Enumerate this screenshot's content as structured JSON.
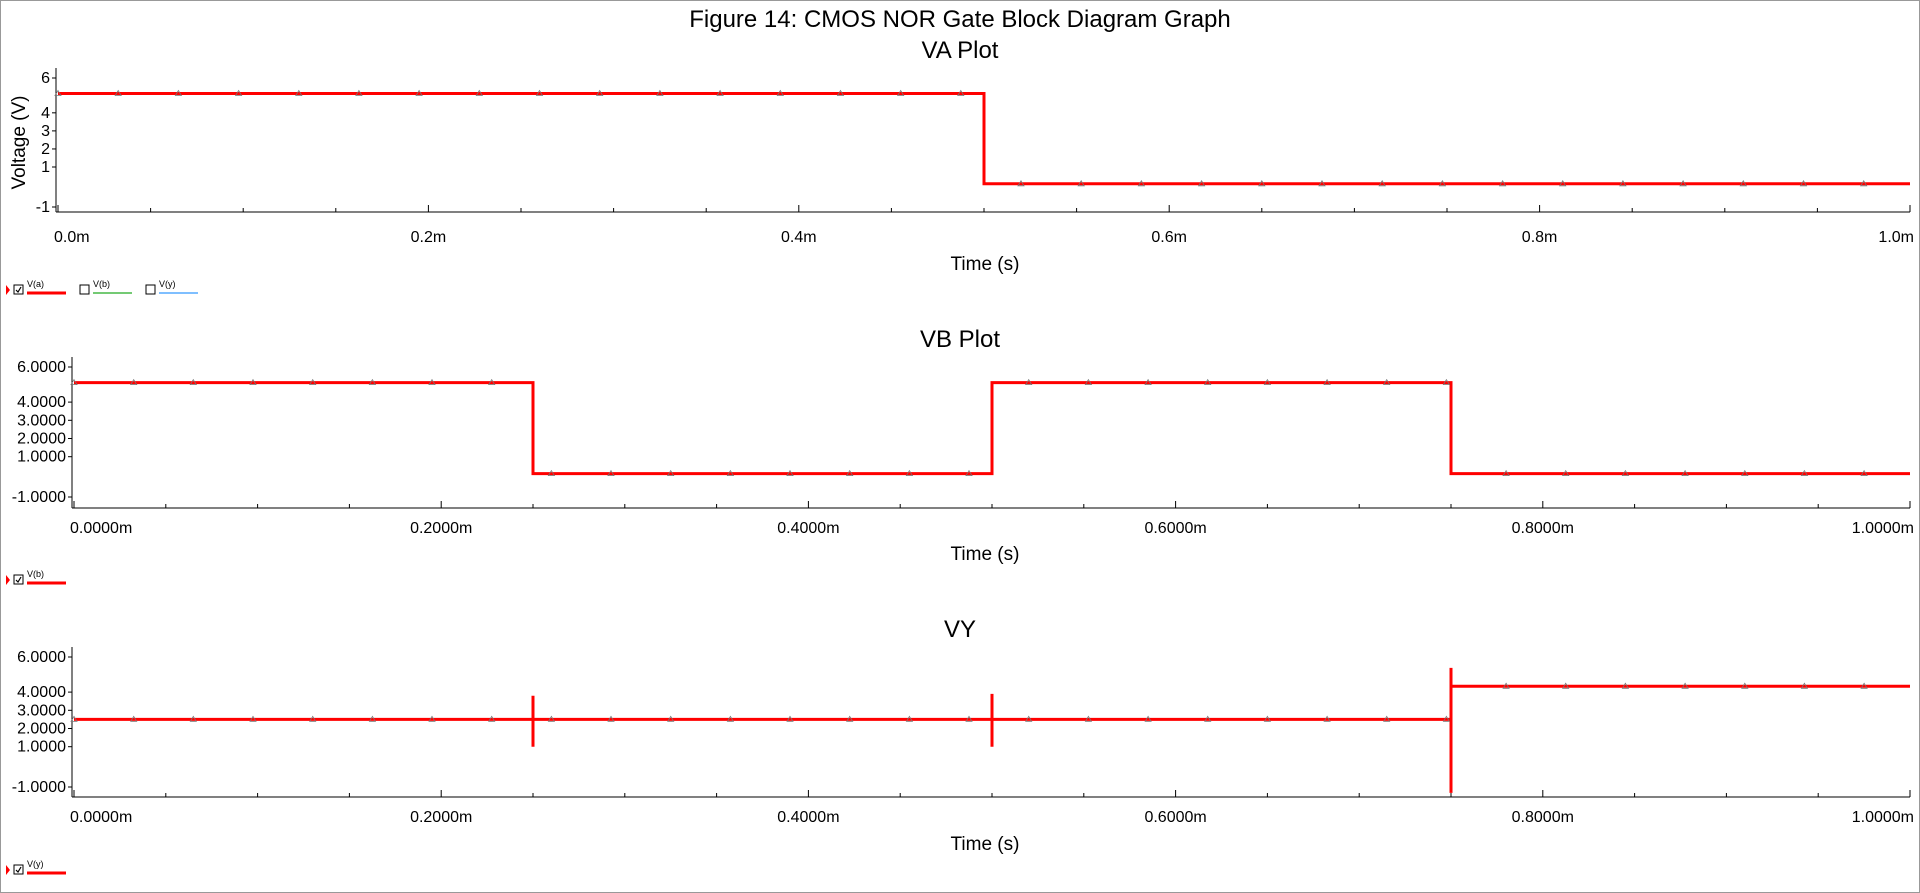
{
  "figure": {
    "title": "Figure 14: CMOS NOR Gate Block Diagram Graph"
  },
  "colors": {
    "trace": "#ff0000",
    "legend_b": "#22aa22",
    "legend_y": "#3399ff",
    "axis": "#000000",
    "frame": "#999999"
  },
  "chart_data": [
    {
      "type": "line",
      "title": "VA Plot",
      "xlabel": "Time (s)",
      "ylabel": "Voltage (V)",
      "xlim": [
        0,
        1
      ],
      "ylim": [
        -1.5,
        6.5
      ],
      "x_unit": "ms",
      "xticks": [
        0,
        0.2,
        0.4,
        0.6,
        0.8,
        1.0
      ],
      "xtick_labels": [
        "0.0m",
        "0.2m",
        "0.4m",
        "0.6m",
        "0.8m",
        "1.0m"
      ],
      "yticks": [
        6,
        4,
        3,
        2,
        1,
        -1
      ],
      "ytick_labels": [
        "6",
        "4",
        "3",
        "2",
        "1",
        "-1"
      ],
      "grid": false,
      "series": [
        {
          "name": "V(a)",
          "color": "#ff0000",
          "checked": true,
          "x": [
            0,
            0.5,
            0.5,
            1.0
          ],
          "y": [
            5,
            5,
            0,
            0
          ]
        }
      ],
      "legend": [
        {
          "label": "V(a)",
          "checked": true,
          "color": "#ff0000"
        },
        {
          "label": "V(b)",
          "checked": false,
          "color": "#22aa22"
        },
        {
          "label": "V(y)",
          "checked": false,
          "color": "#3399ff"
        }
      ]
    },
    {
      "type": "line",
      "title": "VB Plot",
      "xlabel": "Time (s)",
      "ylabel": "",
      "xlim": [
        0,
        1
      ],
      "ylim": [
        -1.5,
        6.5
      ],
      "x_unit": "ms",
      "xticks": [
        0,
        0.2,
        0.4,
        0.6,
        0.8,
        1.0
      ],
      "xtick_labels": [
        "0.0000m",
        "0.2000m",
        "0.4000m",
        "0.6000m",
        "0.8000m",
        "1.0000m"
      ],
      "yticks": [
        6,
        4,
        3,
        2,
        1,
        -1
      ],
      "ytick_labels": [
        "6.0000",
        "4.0000",
        "3.0000",
        "2.0000",
        "1.0000",
        "-1.0000"
      ],
      "grid": false,
      "series": [
        {
          "name": "V(b)",
          "color": "#ff0000",
          "checked": true,
          "x": [
            0,
            0.25,
            0.25,
            0.5,
            0.5,
            0.75,
            0.75,
            1.0
          ],
          "y": [
            5,
            5,
            0,
            0,
            5,
            5,
            0,
            0
          ]
        }
      ],
      "legend": [
        {
          "label": "V(b)",
          "checked": true,
          "color": "#ff0000"
        }
      ]
    },
    {
      "type": "line",
      "title": "VY",
      "xlabel": "Time (s)",
      "ylabel": "",
      "xlim": [
        0,
        1
      ],
      "ylim": [
        -1.5,
        6.5
      ],
      "x_unit": "ms",
      "xticks": [
        0,
        0.2,
        0.4,
        0.6,
        0.8,
        1.0
      ],
      "xtick_labels": [
        "0.0000m",
        "0.2000m",
        "0.4000m",
        "0.6000m",
        "0.8000m",
        "1.0000m"
      ],
      "yticks": [
        6,
        4,
        3,
        2,
        1,
        -1
      ],
      "ytick_labels": [
        "6.0000",
        "4.0000",
        "3.0000",
        "2.0000",
        "1.0000",
        "-1.0000"
      ],
      "grid": false,
      "series": [
        {
          "name": "V(y)",
          "color": "#ff0000",
          "checked": true,
          "x": [
            0,
            0.25,
            0.25,
            0.25,
            0.25,
            0.5,
            0.5,
            0.5,
            0.5,
            0.75,
            0.75,
            0.75,
            0.75,
            1.0
          ],
          "y": [
            2.5,
            2.5,
            3.8,
            1.0,
            2.5,
            2.5,
            3.9,
            1.0,
            2.5,
            2.5,
            -1.3,
            5.3,
            4.3,
            4.3
          ]
        }
      ],
      "legend": [
        {
          "label": "V(y)",
          "checked": true,
          "color": "#ff0000"
        }
      ]
    }
  ]
}
